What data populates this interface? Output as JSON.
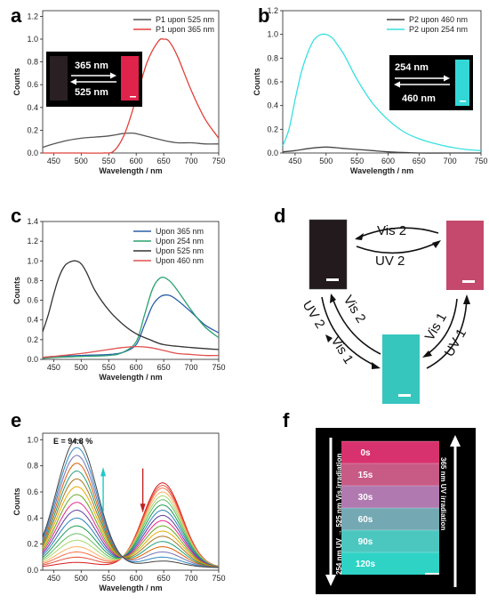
{
  "panels": {
    "a": "a",
    "b": "b",
    "c": "c",
    "d": "d",
    "e": "e",
    "f": "f"
  },
  "axis_common": {
    "xlabel": "Wavelength / nm",
    "ylabel": "Counts"
  },
  "chart_data": [
    {
      "panel": "a",
      "type": "line",
      "xlabel": "Wavelength / nm",
      "ylabel": "Counts",
      "xlim": [
        430,
        750
      ],
      "ylim": [
        0,
        1.25
      ],
      "xticks": [
        450,
        500,
        550,
        600,
        650,
        700,
        750
      ],
      "yticks": [
        0.0,
        0.2,
        0.4,
        0.6,
        0.8,
        1.0,
        1.2
      ],
      "legend_position": "top-right",
      "series": [
        {
          "name": "P1 upon 525 nm",
          "color": "#555555",
          "x": [
            430,
            450,
            475,
            500,
            525,
            550,
            575,
            590,
            600,
            625,
            650,
            675,
            700,
            725,
            750
          ],
          "y": [
            0.05,
            0.08,
            0.11,
            0.13,
            0.14,
            0.15,
            0.17,
            0.175,
            0.17,
            0.14,
            0.11,
            0.09,
            0.09,
            0.08,
            0.08
          ]
        },
        {
          "name": "P1 upon 365 nm",
          "color": "#e0403a",
          "x": [
            430,
            450,
            500,
            540,
            560,
            580,
            600,
            620,
            640,
            650,
            660,
            675,
            700,
            725,
            750
          ],
          "y": [
            0.0,
            0.0,
            0.0,
            0.0,
            0.02,
            0.18,
            0.48,
            0.8,
            0.98,
            1.0,
            0.98,
            0.85,
            0.55,
            0.3,
            0.13
          ]
        }
      ],
      "inset": {
        "label_top": "365 nm",
        "label_bottom": "525 nm"
      }
    },
    {
      "panel": "b",
      "type": "line",
      "xlabel": "Wavelength / nm",
      "ylabel": "Counts",
      "xlim": [
        430,
        750
      ],
      "ylim": [
        0,
        1.2
      ],
      "xticks": [
        450,
        500,
        550,
        600,
        650,
        700,
        750
      ],
      "yticks": [
        0.0,
        0.2,
        0.4,
        0.6,
        0.8,
        1.0,
        1.2
      ],
      "legend_position": "top-right",
      "series": [
        {
          "name": "P2 upon 460 nm",
          "color": "#444444",
          "x": [
            430,
            450,
            475,
            500,
            525,
            550,
            575,
            600,
            650,
            700,
            750
          ],
          "y": [
            0.01,
            0.02,
            0.04,
            0.05,
            0.04,
            0.03,
            0.02,
            0.01,
            0.0,
            0.0,
            0.0
          ]
        },
        {
          "name": "P2 upon 254 nm",
          "color": "#38e0e0",
          "x": [
            430,
            440,
            450,
            460,
            470,
            480,
            490,
            500,
            510,
            520,
            530,
            550,
            575,
            600,
            625,
            650,
            675,
            700,
            725,
            750
          ],
          "y": [
            0.06,
            0.2,
            0.45,
            0.68,
            0.84,
            0.95,
            0.995,
            1.0,
            0.97,
            0.9,
            0.82,
            0.62,
            0.42,
            0.28,
            0.18,
            0.12,
            0.08,
            0.05,
            0.03,
            0.02
          ]
        }
      ],
      "inset": {
        "label_top": "254 nm",
        "label_bottom": "460 nm"
      }
    },
    {
      "panel": "c",
      "type": "line",
      "xlabel": "Wavelength / nm",
      "ylabel": "Counts",
      "xlim": [
        430,
        750
      ],
      "ylim": [
        0,
        1.4
      ],
      "xticks": [
        450,
        500,
        550,
        600,
        650,
        700,
        750
      ],
      "yticks": [
        0.0,
        0.2,
        0.4,
        0.6,
        0.8,
        1.0,
        1.2,
        1.4
      ],
      "legend_position": "top-right",
      "series": [
        {
          "name": "Upon 365 nm",
          "color": "#2c5fa8",
          "x": [
            430,
            450,
            500,
            550,
            575,
            600,
            615,
            630,
            645,
            660,
            675,
            700,
            725,
            750
          ],
          "y": [
            0.02,
            0.03,
            0.04,
            0.05,
            0.07,
            0.15,
            0.35,
            0.55,
            0.64,
            0.65,
            0.6,
            0.48,
            0.35,
            0.27
          ]
        },
        {
          "name": "Upon 254 nm",
          "color": "#2aa070",
          "x": [
            430,
            450,
            500,
            550,
            575,
            600,
            615,
            630,
            645,
            660,
            675,
            700,
            725,
            750
          ],
          "y": [
            0.01,
            0.02,
            0.03,
            0.04,
            0.07,
            0.18,
            0.45,
            0.72,
            0.83,
            0.8,
            0.7,
            0.5,
            0.33,
            0.22
          ]
        },
        {
          "name": "Upon 525 nm",
          "color": "#333333",
          "x": [
            430,
            440,
            450,
            460,
            470,
            480,
            490,
            500,
            510,
            525,
            550,
            575,
            600,
            625,
            650,
            700,
            750
          ],
          "y": [
            0.28,
            0.45,
            0.66,
            0.84,
            0.95,
            0.99,
            1.0,
            0.97,
            0.88,
            0.7,
            0.5,
            0.36,
            0.26,
            0.2,
            0.15,
            0.12,
            0.1
          ]
        },
        {
          "name": "Upon 460 nm",
          "color": "#e05050",
          "x": [
            430,
            450,
            500,
            550,
            575,
            600,
            625,
            650,
            675,
            700,
            725,
            750
          ],
          "y": [
            0.02,
            0.03,
            0.06,
            0.1,
            0.12,
            0.13,
            0.12,
            0.09,
            0.06,
            0.05,
            0.04,
            0.04
          ]
        }
      ]
    },
    {
      "panel": "e",
      "type": "line",
      "xlabel": "Wavelength / nm",
      "ylabel": "Counts",
      "xlim": [
        430,
        750
      ],
      "ylim": [
        0,
        1.05
      ],
      "xticks": [
        450,
        500,
        550,
        600,
        650,
        700,
        750
      ],
      "yticks": [
        0.0,
        0.2,
        0.4,
        0.6,
        0.8,
        1.0
      ],
      "annotation": "E = 94.8 %",
      "isosbestic_x": 602,
      "blue_peak_levels": [
        0.04,
        0.08,
        0.12,
        0.16,
        0.21,
        0.26,
        0.32,
        0.38,
        0.44,
        0.5,
        0.56,
        0.62,
        0.68,
        0.74,
        0.8,
        0.86,
        0.92,
        0.98
      ],
      "red_peak_levels": [
        0.65,
        0.63,
        0.61,
        0.58,
        0.55,
        0.52,
        0.48,
        0.44,
        0.4,
        0.36,
        0.32,
        0.28,
        0.24,
        0.2,
        0.16,
        0.12,
        0.08,
        0.05
      ]
    }
  ],
  "scheme_d": {
    "top_upper": "Vis 2",
    "top_lower": "UV 2",
    "left_outer": "UV 2",
    "left_inner": "Vis 2",
    "left_vis": "Vis 1",
    "right_inner": "Vis 1",
    "right_outer": "UV 1"
  },
  "panel_f": {
    "left_label": "254 nm UV → 525 nm Vis.irradiation",
    "right_label": "365 nm UV  irradiation",
    "times": [
      "0s",
      "15s",
      "30s",
      "60s",
      "90s",
      "120s"
    ],
    "band_colors": [
      "#d8326e",
      "#c85a86",
      "#b07ab0",
      "#74a9b4",
      "#4cc7c0",
      "#2fd3c6"
    ]
  }
}
